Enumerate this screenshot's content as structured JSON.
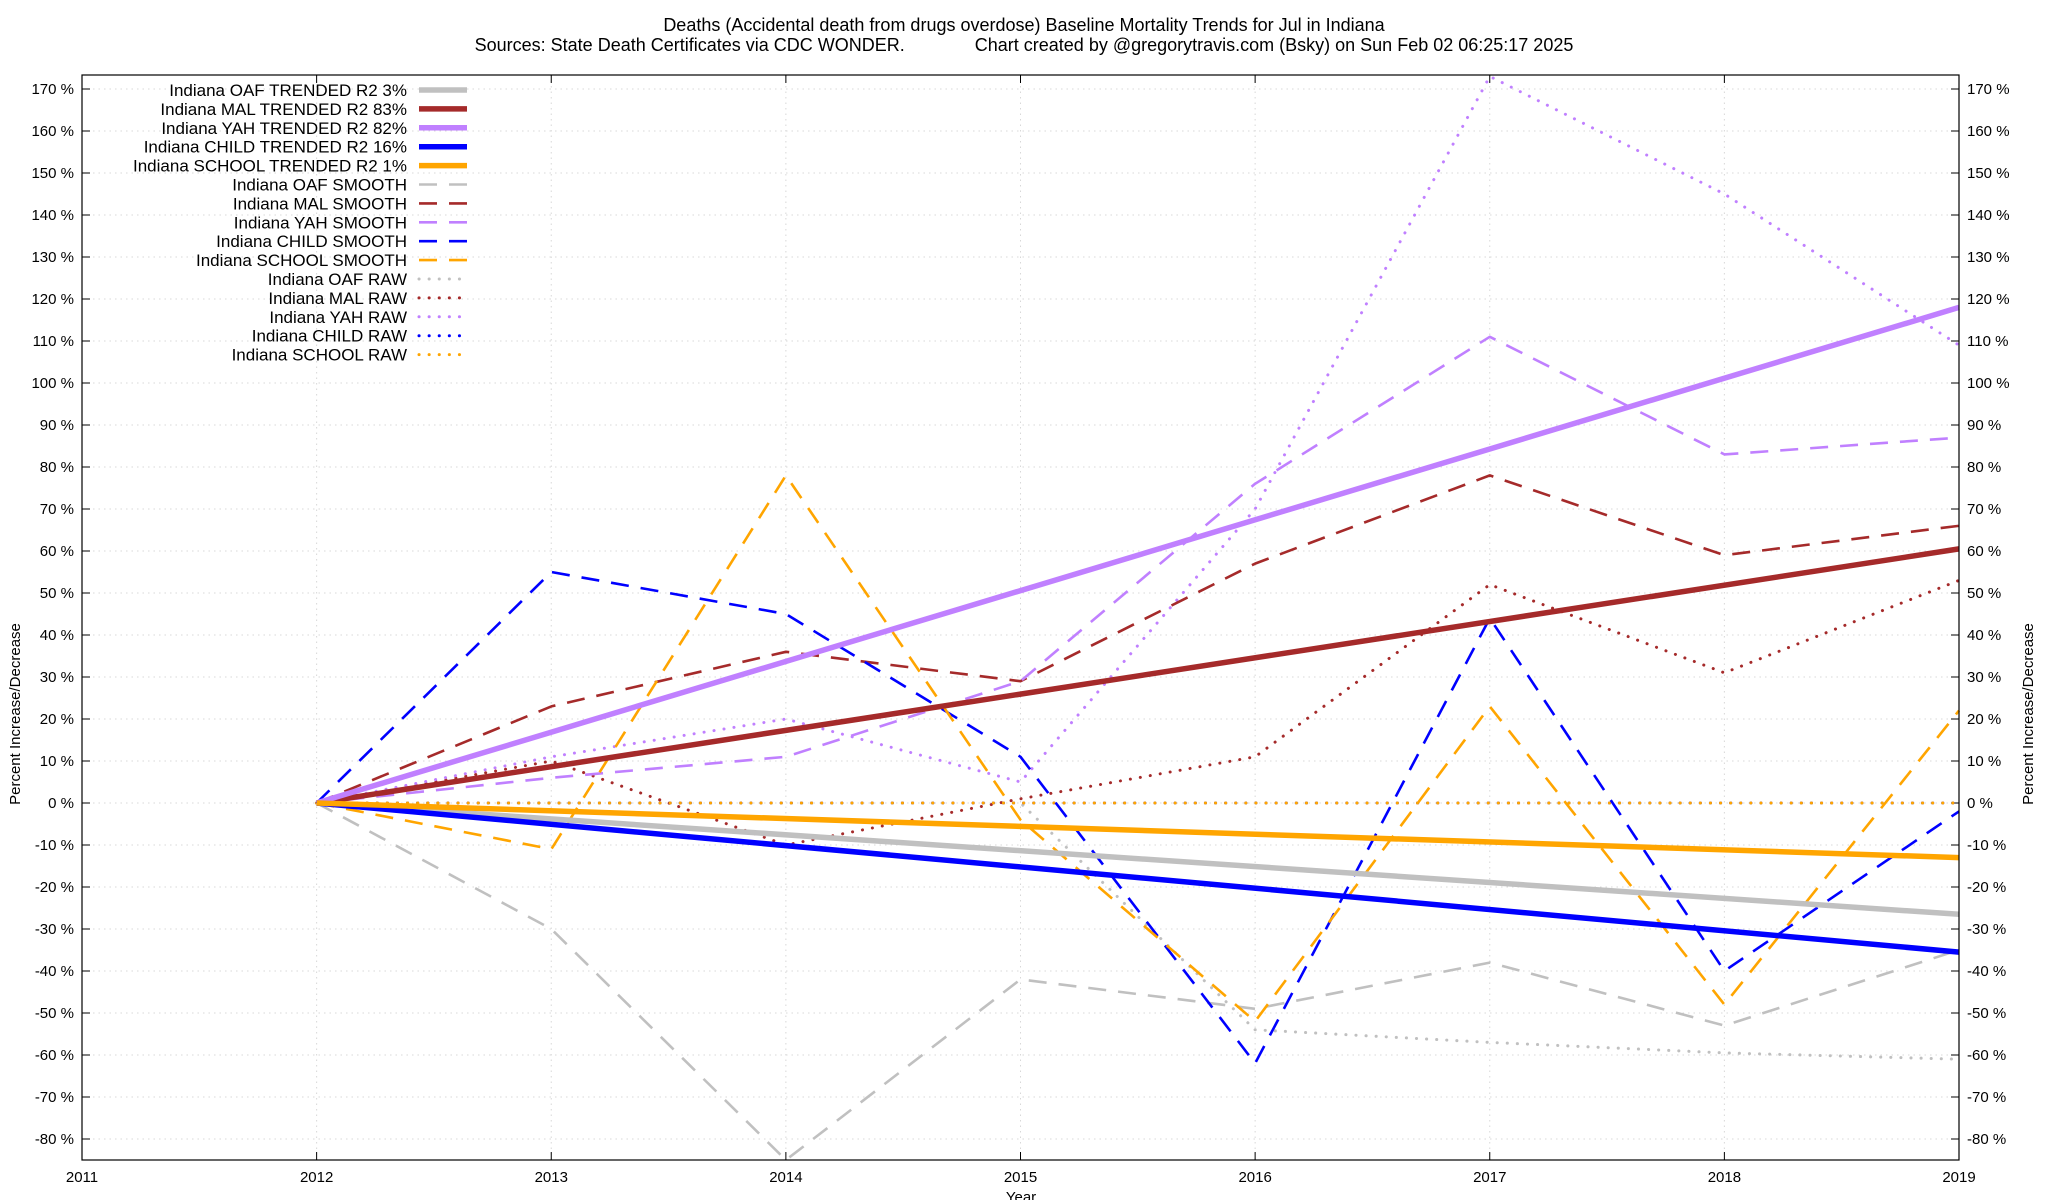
{
  "chart_data": {
    "type": "line",
    "title": "Deaths (Accidental death from drugs overdose)  Baseline Mortality Trends for Jul in Indiana",
    "subtitle": "Sources: State Death Certificates via CDC WONDER.              Chart created by @gregorytravis.com (Bsky) on Sun Feb 02 06:25:17 2025",
    "xlabel": "Year",
    "ylabel": "Percent Increase/Decrease",
    "xlim": [
      2011,
      2019
    ],
    "ylim": [
      -85,
      173
    ],
    "x_ticks": [
      "2011",
      "2012",
      "2013",
      "2014",
      "2015",
      "2016",
      "2017",
      "2018",
      "2019"
    ],
    "y_ticks": [
      "170 %",
      "160 %",
      "150 %",
      "140 %",
      "130 %",
      "120 %",
      "110 %",
      "100 %",
      "90 %",
      "80 %",
      "70 %",
      "60 %",
      "50 %",
      "40 %",
      "30 %",
      "20 %",
      "10 %",
      "0 %",
      "-10 %",
      "-20 %",
      "-30 %",
      "-40 %",
      "-50 %",
      "-60 %",
      "-70 %",
      "-80 %"
    ],
    "grid": true,
    "legend_placement": "top-left",
    "series": [
      {
        "name": "Indiana OAF TRENDED R2  3%",
        "style": "solid",
        "color": "#c0c0c0",
        "x": [
          2012,
          2019
        ],
        "y": [
          0,
          -26.5
        ]
      },
      {
        "name": "Indiana MAL TRENDED R2  83%",
        "style": "solid",
        "color": "#a52a2a",
        "x": [
          2012,
          2019
        ],
        "y": [
          0,
          60.5
        ]
      },
      {
        "name": "Indiana YAH TRENDED R2  82%",
        "style": "solid",
        "color": "#c080ff",
        "x": [
          2012,
          2019
        ],
        "y": [
          0,
          118
        ]
      },
      {
        "name": "Indiana CHILD TRENDED R2  16%",
        "style": "solid",
        "color": "#0000ff",
        "x": [
          2012,
          2019
        ],
        "y": [
          0,
          -35.5
        ]
      },
      {
        "name": "Indiana SCHOOL TRENDED R2  1%",
        "style": "solid",
        "color": "#ffa500",
        "x": [
          2012,
          2019
        ],
        "y": [
          0,
          -13
        ]
      },
      {
        "name": "Indiana OAF SMOOTH",
        "style": "dashed",
        "color": "#c0c0c0",
        "x": [
          2012,
          2013,
          2014,
          2015,
          2016,
          2017,
          2018,
          2019
        ],
        "y": [
          0,
          -30,
          -85,
          -42,
          -49,
          -38,
          -53,
          -35
        ]
      },
      {
        "name": "Indiana MAL SMOOTH",
        "style": "dashed",
        "color": "#a52a2a",
        "x": [
          2012,
          2013,
          2014,
          2015,
          2016,
          2017,
          2018,
          2019
        ],
        "y": [
          0,
          23,
          36,
          29,
          57,
          78,
          59,
          66
        ]
      },
      {
        "name": "Indiana YAH SMOOTH",
        "style": "dashed",
        "color": "#c080ff",
        "x": [
          2012,
          2013,
          2014,
          2015,
          2016,
          2017,
          2018,
          2019
        ],
        "y": [
          0,
          6,
          11,
          29,
          76,
          111,
          83,
          87
        ]
      },
      {
        "name": "Indiana CHILD SMOOTH",
        "style": "dashed",
        "color": "#0000ff",
        "x": [
          2012,
          2013,
          2014,
          2015,
          2016,
          2017,
          2018,
          2019
        ],
        "y": [
          0,
          55,
          45,
          11,
          -62,
          44,
          -40,
          -2
        ]
      },
      {
        "name": "Indiana SCHOOL SMOOTH",
        "style": "dashed",
        "color": "#ffa500",
        "x": [
          2012,
          2013,
          2014,
          2015,
          2016,
          2017,
          2018,
          2019
        ],
        "y": [
          0,
          -11,
          78,
          -4,
          -52,
          23,
          -48,
          22
        ]
      },
      {
        "name": "Indiana OAF RAW",
        "style": "dotted",
        "color": "#c0c0c0",
        "x": [
          2012,
          2013,
          2014,
          2015,
          2016,
          2017,
          2018,
          2019
        ],
        "y": [
          0,
          0,
          0,
          0,
          -54,
          -57,
          -59.5,
          -61
        ]
      },
      {
        "name": "Indiana MAL RAW",
        "style": "dotted",
        "color": "#a52a2a",
        "x": [
          2012,
          2013,
          2014,
          2015,
          2016,
          2017,
          2018,
          2019
        ],
        "y": [
          0,
          10,
          -10,
          1,
          11,
          52,
          31,
          53
        ]
      },
      {
        "name": "Indiana YAH RAW",
        "style": "dotted",
        "color": "#c080ff",
        "x": [
          2012,
          2013,
          2014,
          2015,
          2016,
          2017,
          2018,
          2019
        ],
        "y": [
          0,
          11,
          20,
          5,
          70,
          173,
          145,
          109
        ]
      },
      {
        "name": "Indiana CHILD RAW",
        "style": "dotted",
        "color": "#0000ff",
        "x": [
          2012,
          2013,
          2014,
          2015,
          2016,
          2017,
          2018,
          2019
        ],
        "y": [
          0,
          0,
          0,
          0,
          0,
          0,
          0,
          0
        ]
      },
      {
        "name": "Indiana SCHOOL RAW",
        "style": "dotted",
        "color": "#ffa500",
        "x": [
          2012,
          2013,
          2014,
          2015,
          2016,
          2017,
          2018,
          2019
        ],
        "y": [
          0,
          0,
          0,
          0,
          0,
          0,
          0,
          0
        ]
      }
    ]
  }
}
